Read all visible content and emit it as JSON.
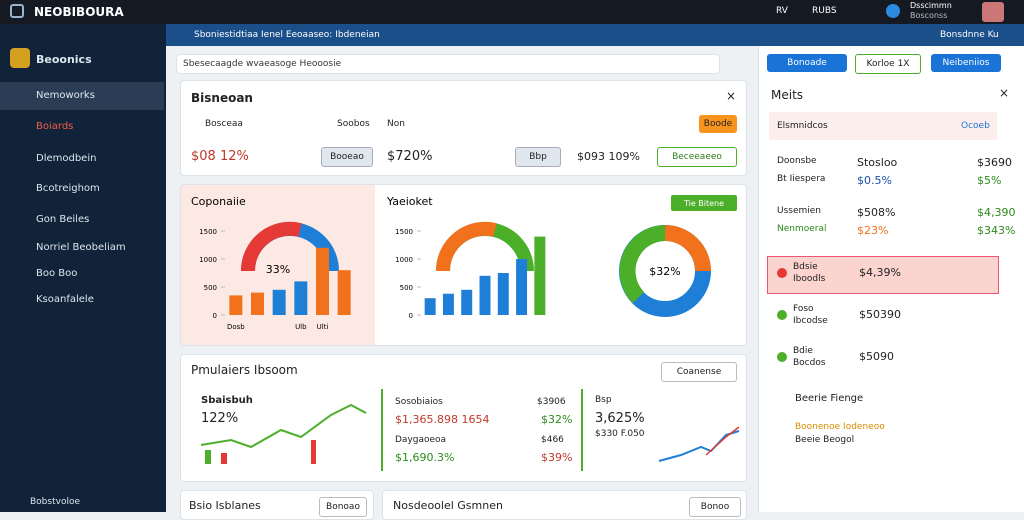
{
  "topbar": {
    "brand": "NEOBIBOURA",
    "items": [
      "RV",
      "RUBS"
    ],
    "user": "Dsscimmn",
    "user_sub": "Bosconss"
  },
  "sidebar": {
    "header": "Beoonics",
    "items": [
      "Nemoworks",
      "Boiards",
      "Dlemodbein",
      "Bcotreighom",
      "Gon Beiles",
      "Norriel Beobeliam",
      "Boo Boo",
      "Ksoanfalele"
    ],
    "footer": "Bobstvoloe"
  },
  "breadcrumb": {
    "text": "Sboniestidtiaa Ienel Eeoaaseo: Ibdeneian",
    "right": "Bonsdnne Ku"
  },
  "search": {
    "placeholder": "Sbesecaagde wvaeasoge Heooosie"
  },
  "summary": {
    "title": "Bisneoan",
    "options": [
      "Bosceaa",
      "Soobos",
      "Non"
    ],
    "button": "Boode",
    "values": [
      "$08 12%",
      "$720%",
      "$093 109%"
    ],
    "chips": [
      "Booeao",
      "Bbp"
    ],
    "dropdown": "Beceeaeeo"
  },
  "chart_data": [
    {
      "type": "bar",
      "title": "Coponaiie",
      "center_label": "33%",
      "categories": [
        "Dosb",
        null,
        null,
        "Ulb",
        "Ulti",
        null
      ],
      "values": [
        350,
        400,
        450,
        600,
        1200,
        800
      ],
      "colors": [
        "#f2711c",
        "#f2711c",
        "#1f7fd6",
        "#1f7fd6",
        "#f2711c",
        "#f2711c"
      ],
      "ylim": [
        0,
        1500
      ],
      "yticks": [
        0,
        500,
        1000,
        1500
      ]
    },
    {
      "type": "bar",
      "title": "Yaeioket",
      "button": "Tie Bitene",
      "center_label": "$32%",
      "categories": [
        null,
        null,
        null,
        null,
        null,
        null,
        null
      ],
      "values": [
        300,
        380,
        450,
        700,
        750,
        1000,
        1400
      ],
      "colors": [
        "#1f7fd6",
        "#1f7fd6",
        "#1f7fd6",
        "#1f7fd6",
        "#1f7fd6",
        "#1f7fd6",
        "#4caf2a"
      ],
      "ylim": [
        0,
        1500
      ],
      "yticks": [
        0,
        500,
        1000,
        1500
      ]
    }
  ],
  "performance": {
    "title": "Pmulaiers Ibsoom",
    "dropdown": "Coanense",
    "left": {
      "label": "Sbaisbuh",
      "value": "122%"
    },
    "middle": [
      [
        "Sosobiaios",
        "$3906"
      ],
      [
        "$1,365.898 1654",
        "$32%"
      ],
      [
        "Daygaoeoa",
        "$466"
      ],
      [
        "$1,690.3%",
        "$39%"
      ]
    ],
    "right": {
      "label": "Bsp",
      "value": "3,625%",
      "sub": "$330 F.050"
    }
  },
  "bottom": [
    {
      "title": "Bsio Isblanes",
      "button": "Bonoao"
    },
    {
      "title": "Nosdeoolel Gsmnen",
      "button": "Bonoo"
    }
  ],
  "right_panel": {
    "buttons": [
      "Bonoade",
      "Korloe 1X",
      "Neibeniios"
    ],
    "title": "Meits",
    "filter": "Elsmnidcos",
    "filter_value": "Ocoeb",
    "rows": [
      [
        "Doonsbe",
        "Stosloo",
        "$3690"
      ],
      [
        "Bt Iiespera",
        "$0.5%",
        "$5%"
      ],
      [
        "Ussemien",
        "$508%",
        "$4,390"
      ],
      [
        "Nenmoeral",
        "$23%",
        "$343%"
      ]
    ],
    "items": [
      {
        "title": "Bdsie",
        "sub": "Iboodls",
        "value": "$4,39%"
      },
      {
        "title": "Foso",
        "sub": "Ibcodse",
        "value": "$50390"
      },
      {
        "title": "Bdie",
        "sub": "Bocdos",
        "value": "$5090"
      }
    ],
    "link": "Beerie Fienge",
    "note": {
      "title": "Boonenoe Iodeneoo",
      "sub": "Beeie Beogol"
    }
  }
}
